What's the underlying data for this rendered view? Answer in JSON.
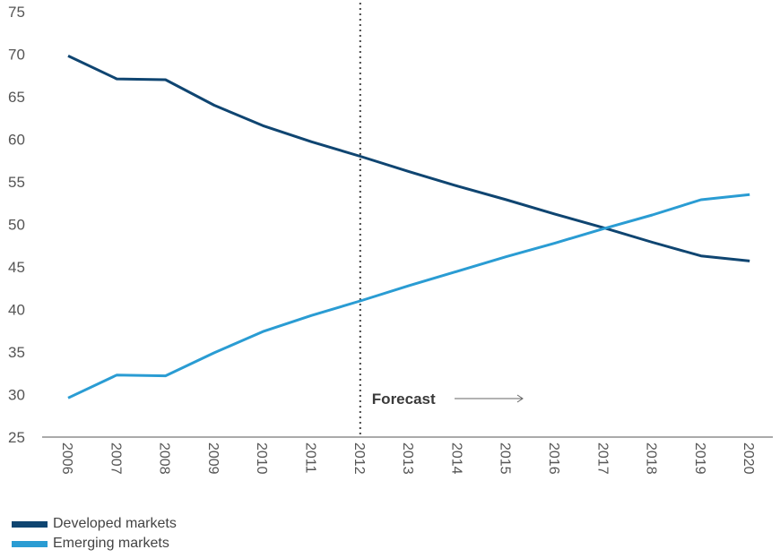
{
  "chart_data": {
    "type": "line",
    "x": [
      "2006",
      "2007",
      "2008",
      "2009",
      "2010",
      "2011",
      "2012",
      "2013",
      "2014",
      "2015",
      "2016",
      "2017",
      "2018",
      "2019",
      "2020"
    ],
    "series": [
      {
        "name": "Developed markets",
        "color": "#0f4571",
        "values": [
          69.8,
          67.1,
          67.0,
          64.0,
          61.6,
          59.7,
          58.0,
          56.2,
          54.5,
          52.9,
          51.2,
          49.6,
          47.9,
          46.3,
          45.7
        ]
      },
      {
        "name": "Emerging markets",
        "color": "#2a9cd3",
        "values": [
          29.6,
          32.3,
          32.2,
          34.9,
          37.4,
          39.3,
          41.0,
          42.8,
          44.5,
          46.2,
          47.8,
          49.5,
          51.1,
          52.9,
          53.5
        ]
      }
    ],
    "yticks": [
      "75",
      "70",
      "65",
      "60",
      "55",
      "50",
      "45",
      "40",
      "35",
      "30",
      "25"
    ],
    "ylim": [
      25,
      75
    ],
    "forecast_start": "2012",
    "annotation": "Forecast",
    "xlabel": "",
    "ylabel": "",
    "legend_position": "bottom-left"
  }
}
